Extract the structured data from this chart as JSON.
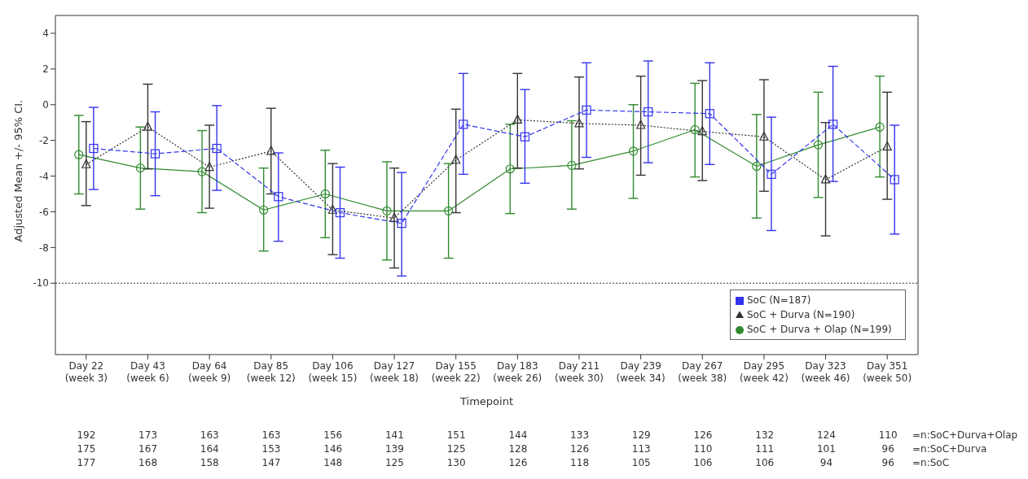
{
  "chart_data": {
    "type": "line",
    "xlabel": "Timepoint",
    "ylabel": "Adjusted Mean +/- 95% CI.",
    "categories": [
      "Day 22\n(week 3)",
      "Day 43\n(week 6)",
      "Day 64\n(week 9)",
      "Day 85\n(week 12)",
      "Day 106\n(week 15)",
      "Day 127\n(week 18)",
      "Day 155\n(week 22)",
      "Day 183\n(week 26)",
      "Day 211\n(week 30)",
      "Day 239\n(week 34)",
      "Day 267\n(week 38)",
      "Day 295\n(week 42)",
      "Day 323\n(week 46)",
      "Day 351\n(week 50)"
    ],
    "ylim": [
      -14,
      5
    ],
    "yticks": [
      -10,
      -8,
      -6,
      -4,
      -2,
      0,
      2,
      4
    ],
    "legend": "bottom right",
    "ref_lines": [
      {
        "axis": "y",
        "value": -10,
        "color": "#333333",
        "line_style": "dotted"
      }
    ],
    "series": [
      {
        "name": "SoC + Durva + Olap (N=199)",
        "color": "#2f8a2f",
        "marker": "circle",
        "line_style": "solid",
        "values": [
          -2.8,
          -3.55,
          -3.75,
          -5.9,
          -5.0,
          -5.95,
          -5.95,
          -3.6,
          -3.4,
          -2.6,
          -1.4,
          -3.45,
          -2.25,
          -1.25
        ],
        "errors": [
          [
            -5.0,
            -0.6
          ],
          [
            -5.85,
            -1.25
          ],
          [
            -6.05,
            -1.45
          ],
          [
            -8.2,
            -3.55
          ],
          [
            -7.45,
            -2.55
          ],
          [
            -8.7,
            -3.2
          ],
          [
            -8.6,
            -3.3
          ],
          [
            -6.1,
            -1.1
          ],
          [
            -5.85,
            -0.9
          ],
          [
            -5.25,
            0.0
          ],
          [
            -4.05,
            1.2
          ],
          [
            -6.35,
            -0.55
          ],
          [
            -5.2,
            0.7
          ],
          [
            -4.05,
            1.6
          ]
        ]
      },
      {
        "name": "SoC + Durva (N=190)",
        "color": "#333333",
        "marker": "triangle",
        "line_style": "dotted",
        "values": [
          -3.35,
          -1.25,
          -3.5,
          -2.6,
          -5.9,
          -6.35,
          -3.1,
          -0.85,
          -1.05,
          -1.15,
          -1.5,
          -1.8,
          -4.2,
          -2.35
        ],
        "errors": [
          [
            -5.65,
            -0.95
          ],
          [
            -3.6,
            1.15
          ],
          [
            -5.8,
            -1.15
          ],
          [
            -5.0,
            -0.2
          ],
          [
            -8.4,
            -3.3
          ],
          [
            -9.15,
            -3.55
          ],
          [
            -6.05,
            -0.25
          ],
          [
            -3.55,
            1.75
          ],
          [
            -3.6,
            1.55
          ],
          [
            -3.95,
            1.6
          ],
          [
            -4.25,
            1.35
          ],
          [
            -4.85,
            1.4
          ],
          [
            -7.35,
            -1.0
          ],
          [
            -5.3,
            0.7
          ]
        ]
      },
      {
        "name": "SoC (N=187)",
        "color": "#3333ee",
        "marker": "square",
        "line_style": "dashed",
        "values": [
          -2.45,
          -2.75,
          -2.45,
          -5.15,
          -6.05,
          -6.65,
          -1.1,
          -1.8,
          -0.3,
          -0.4,
          -0.5,
          -3.9,
          -1.1,
          -4.2
        ],
        "errors": [
          [
            -4.75,
            -0.15
          ],
          [
            -5.1,
            -0.4
          ],
          [
            -4.8,
            -0.05
          ],
          [
            -7.65,
            -2.7
          ],
          [
            -8.6,
            -3.5
          ],
          [
            -9.6,
            -3.8
          ],
          [
            -3.9,
            1.75
          ],
          [
            -4.4,
            0.85
          ],
          [
            -2.95,
            2.35
          ],
          [
            -3.25,
            2.45
          ],
          [
            -3.35,
            2.35
          ],
          [
            -7.05,
            -0.7
          ],
          [
            -4.3,
            2.15
          ],
          [
            -7.25,
            -1.15
          ]
        ]
      }
    ],
    "annotations": [
      "192 173 163 163 156 141 151 144 133 129 126 132 124 110 =n:SoC+Durva+Olap",
      "175 167 164 153 146 139 125 128 126 113 110 111 101 96 =n:SoC+Durva",
      "177 168 158 147 148 125 130 126 118 105 106 106 94 96 =n:SoC"
    ]
  }
}
